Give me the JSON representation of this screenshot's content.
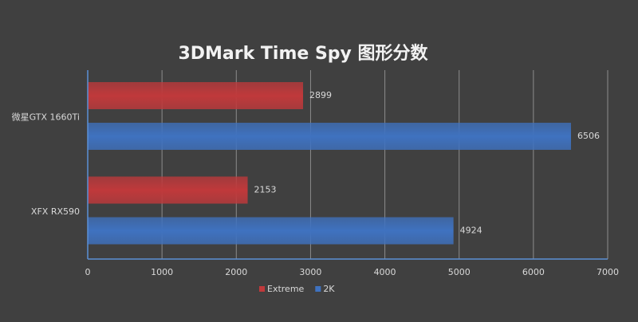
{
  "chart_data": {
    "type": "bar",
    "orientation": "horizontal",
    "title": "3DMark Time Spy 图形分数",
    "categories": [
      "微星GTX 1660Ti",
      "XFX RX590"
    ],
    "series": [
      {
        "name": "Extreme",
        "color": "#c0393b",
        "values": [
          2899,
          2153
        ]
      },
      {
        "name": "2K",
        "color": "#3f72c0",
        "values": [
          6506,
          4924
        ]
      }
    ],
    "xlim": [
      0,
      7000
    ],
    "xticks": [
      0,
      1000,
      2000,
      3000,
      4000,
      5000,
      6000,
      7000
    ],
    "grid": true,
    "legend": "bottom"
  }
}
